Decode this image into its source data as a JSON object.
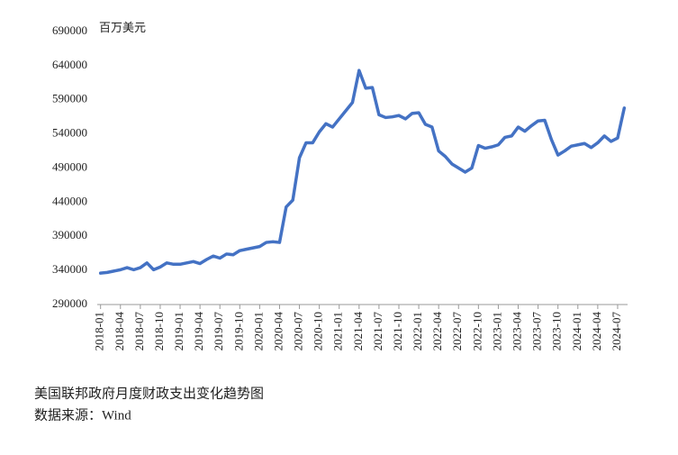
{
  "chart_data": {
    "type": "line",
    "unit_label": "百万美元",
    "title": "美国联邦政府月度财政支出变化趋势图",
    "source": "数据来源：Wind",
    "categories": [
      "2018-01",
      null,
      null,
      "2018-04",
      null,
      null,
      "2018-07",
      null,
      null,
      "2018-10",
      null,
      null,
      "2019-01",
      null,
      null,
      "2019-04",
      null,
      null,
      "2019-07",
      null,
      null,
      "2019-10",
      null,
      null,
      "2020-01",
      null,
      null,
      "2020-04",
      null,
      null,
      "2020-07",
      null,
      null,
      "2020-10",
      null,
      null,
      "2021-01",
      null,
      null,
      "2021-04",
      null,
      null,
      "2021-07",
      null,
      null,
      "2021-10",
      null,
      null,
      "2022-01",
      null,
      null,
      "2022-04",
      null,
      null,
      "2022-07",
      null,
      null,
      "2022-10",
      null,
      null,
      "2023-01",
      null,
      null,
      "2023-04",
      null,
      null,
      "2023-07",
      null,
      null,
      "2023-10",
      null,
      null,
      "2024-01",
      null,
      null,
      "2024-04",
      null,
      null,
      "2024-07",
      null
    ],
    "series": [
      {
        "color": "#4472c4",
        "values": [
          336000,
          337000,
          339000,
          341000,
          344000,
          341000,
          344000,
          351000,
          341000,
          345000,
          351000,
          349000,
          349000,
          351000,
          353000,
          350000,
          356000,
          361000,
          358000,
          364000,
          363000,
          369000,
          371000,
          373000,
          375000,
          381000,
          382000,
          381000,
          433000,
          443000,
          505000,
          527000,
          527000,
          543000,
          555000,
          550000,
          562000,
          574000,
          586000,
          633000,
          607000,
          608000,
          568000,
          564000,
          565000,
          567000,
          562000,
          570000,
          571000,
          554000,
          550000,
          515000,
          507000,
          496000,
          490000,
          484000,
          490000,
          523000,
          519000,
          521000,
          524000,
          535000,
          537000,
          550000,
          544000,
          552000,
          559000,
          560000,
          532000,
          509000,
          515000,
          522000,
          524000,
          526000,
          520000,
          527000,
          537000,
          529000,
          534000,
          578000
        ]
      }
    ],
    "ylim": [
      290000,
      690000
    ],
    "yticks": [
      290000,
      340000,
      390000,
      440000,
      490000,
      540000,
      590000,
      640000,
      690000
    ],
    "grid": false
  }
}
